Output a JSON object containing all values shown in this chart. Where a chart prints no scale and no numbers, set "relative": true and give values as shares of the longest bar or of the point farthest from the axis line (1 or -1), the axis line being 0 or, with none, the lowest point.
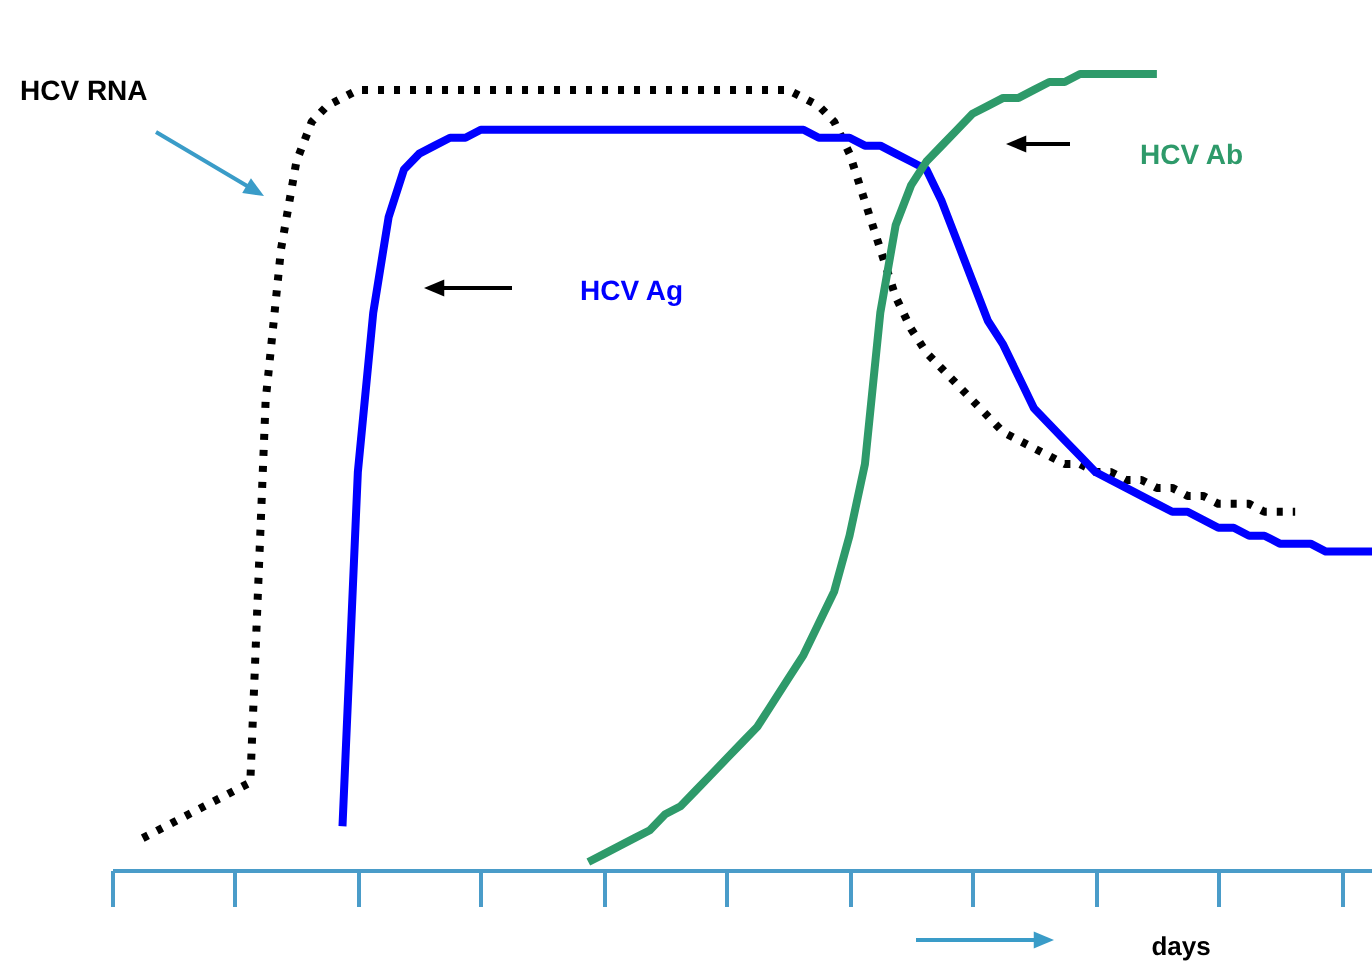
{
  "chart_data": {
    "type": "line",
    "relative": true,
    "xlabel": "days",
    "marker": "none",
    "categories": [
      null,
      null,
      null,
      null,
      null,
      null,
      null,
      null,
      null,
      null,
      null,
      null,
      null,
      null,
      null,
      null,
      null,
      null,
      null,
      null,
      null,
      null,
      null,
      null,
      null,
      null,
      null,
      null,
      null,
      null,
      null,
      null,
      null,
      null,
      null,
      null,
      null,
      null,
      null,
      null,
      null,
      null,
      null,
      null,
      null,
      null,
      null,
      null,
      null,
      null,
      null,
      null,
      null,
      null,
      null,
      null,
      null,
      null,
      null,
      null,
      null,
      null,
      null,
      null,
      null,
      null,
      null,
      null,
      null,
      null,
      null,
      null,
      null,
      null,
      null,
      null,
      null,
      null,
      null,
      null,
      null,
      null,
      null
    ],
    "series": [
      {
        "name": "HCV RNA",
        "color": "#000000",
        "line_style": "dotted",
        "values": [
          null,
          null,
          0.04,
          0.05,
          0.06,
          0.07,
          0.08,
          0.09,
          0.1,
          0.11,
          0.59,
          0.78,
          0.89,
          0.94,
          0.96,
          0.97,
          0.98,
          0.98,
          0.98,
          0.98,
          0.98,
          0.98,
          0.98,
          0.98,
          0.98,
          0.98,
          0.98,
          0.98,
          0.98,
          0.98,
          0.98,
          0.98,
          0.98,
          0.98,
          0.98,
          0.98,
          0.98,
          0.98,
          0.98,
          0.98,
          0.98,
          0.98,
          0.98,
          0.98,
          0.98,
          0.97,
          0.96,
          0.94,
          0.9,
          0.84,
          0.78,
          0.72,
          0.68,
          0.65,
          0.63,
          0.61,
          0.59,
          0.57,
          0.55,
          0.54,
          0.53,
          0.52,
          0.51,
          0.51,
          0.5,
          0.5,
          0.49,
          0.49,
          0.48,
          0.48,
          0.47,
          0.47,
          0.46,
          0.46,
          0.46,
          0.45,
          0.45,
          0.45,
          null,
          null,
          null,
          null,
          null
        ]
      },
      {
        "name": "HCV Ag",
        "color": "#0000ff",
        "line_style": "solid",
        "values": [
          null,
          null,
          null,
          null,
          null,
          null,
          null,
          null,
          null,
          null,
          null,
          null,
          null,
          null,
          null,
          0.055,
          0.5,
          0.7,
          0.82,
          0.88,
          0.9,
          0.91,
          0.92,
          0.92,
          0.93,
          0.93,
          0.93,
          0.93,
          0.93,
          0.93,
          0.93,
          0.93,
          0.93,
          0.93,
          0.93,
          0.93,
          0.93,
          0.93,
          0.93,
          0.93,
          0.93,
          0.93,
          0.93,
          0.93,
          0.93,
          0.93,
          0.92,
          0.92,
          0.92,
          0.91,
          0.91,
          0.9,
          0.89,
          0.88,
          0.84,
          0.79,
          0.74,
          0.69,
          0.66,
          0.62,
          0.58,
          0.56,
          0.54,
          0.52,
          0.5,
          0.49,
          0.48,
          0.47,
          0.46,
          0.45,
          0.45,
          0.44,
          0.43,
          0.43,
          0.42,
          0.42,
          0.41,
          0.41,
          0.41,
          0.4,
          0.4,
          0.4,
          0.4
        ]
      },
      {
        "name": "HCV Ab",
        "color": "#2e9a6a",
        "line_style": "solid",
        "values": [
          null,
          null,
          null,
          null,
          null,
          null,
          null,
          null,
          null,
          null,
          null,
          null,
          null,
          null,
          null,
          null,
          null,
          null,
          null,
          null,
          null,
          null,
          null,
          null,
          null,
          null,
          null,
          null,
          null,
          null,
          null,
          0.01,
          0.02,
          0.03,
          0.04,
          0.05,
          0.07,
          0.08,
          0.1,
          0.12,
          0.14,
          0.16,
          0.18,
          0.21,
          0.24,
          0.27,
          0.31,
          0.35,
          0.42,
          0.51,
          0.7,
          0.81,
          0.86,
          0.89,
          0.91,
          0.93,
          0.95,
          0.96,
          0.97,
          0.97,
          0.98,
          0.99,
          0.99,
          1.0,
          1.0,
          1.0,
          1.0,
          1.0,
          1.0,
          null,
          null,
          null,
          null,
          null,
          null,
          null,
          null,
          null,
          null,
          null,
          null,
          null,
          null
        ]
      }
    ]
  }
}
